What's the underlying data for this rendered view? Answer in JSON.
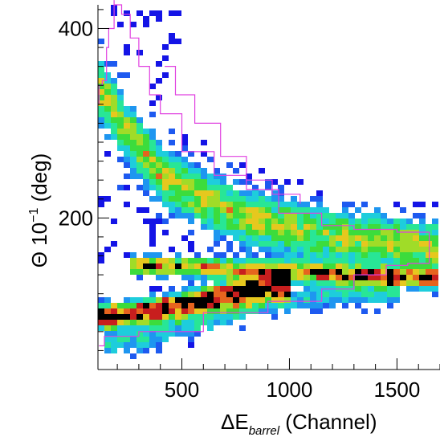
{
  "chart_data": {
    "type": "heatmap",
    "title": "",
    "xlabel": {
      "main": "ΔE",
      "sub": "barrel",
      "unit": " (Channel)"
    },
    "ylabel": {
      "main": "Θ 10",
      "sup": "−1",
      "unit": " (deg)"
    },
    "xlim": [
      110,
      1700
    ],
    "ylim": [
      40,
      425
    ],
    "x_ticks": [
      500,
      1000,
      1500
    ],
    "x_tick_labels": [
      "500",
      "1000",
      "1500"
    ],
    "y_ticks": [
      200,
      400
    ],
    "y_tick_labels": [
      "200",
      "400"
    ],
    "x_minor_step": 100,
    "y_minor_step": 20,
    "grid": false,
    "colormap": [
      "#1414e6",
      "#1e5af0",
      "#1e96f0",
      "#1ecddc",
      "#28e696",
      "#3cdc3c",
      "#a0dc28",
      "#e6c81e",
      "#e6641e",
      "#c81e1e",
      "#000000"
    ],
    "bands": [
      {
        "name": "upper band",
        "points": [
          [
            120,
            335
          ],
          [
            250,
            290
          ],
          [
            400,
            245
          ],
          [
            600,
            220
          ],
          [
            800,
            200
          ],
          [
            1000,
            190
          ],
          [
            1200,
            180
          ],
          [
            1400,
            175
          ],
          [
            1700,
            168
          ]
        ],
        "width": 20,
        "peak": 0.55
      },
      {
        "name": "middle band",
        "points": [
          [
            250,
            150
          ],
          [
            500,
            148
          ],
          [
            800,
            145
          ],
          [
            1100,
            142
          ],
          [
            1400,
            138
          ],
          [
            1700,
            135
          ]
        ],
        "width": 7,
        "peak": 0.75
      },
      {
        "name": "lower band",
        "points": [
          [
            120,
            95
          ],
          [
            300,
            100
          ],
          [
            500,
            108
          ],
          [
            700,
            118
          ],
          [
            900,
            127
          ],
          [
            1000,
            130
          ]
        ],
        "width": 9,
        "peak": 1.0
      },
      {
        "name": "low tail",
        "points": [
          [
            150,
            65
          ],
          [
            300,
            70
          ],
          [
            600,
            90
          ],
          [
            900,
            110
          ],
          [
            1200,
            118
          ],
          [
            1500,
            120
          ]
        ],
        "width": 10,
        "peak": 0.3
      }
    ],
    "cut_contours": [
      {
        "name": "upper contour",
        "points": [
          [
            115,
            65
          ],
          [
            140,
            65
          ],
          [
            140,
            75
          ],
          [
            300,
            80
          ],
          [
            600,
            100
          ],
          [
            900,
            112
          ],
          [
            1150,
            125
          ],
          [
            1300,
            140
          ],
          [
            1450,
            150
          ],
          [
            1550,
            152
          ],
          [
            1650,
            160
          ],
          [
            1650,
            185
          ],
          [
            1500,
            188
          ],
          [
            1300,
            192
          ],
          [
            1150,
            205
          ],
          [
            950,
            230
          ],
          [
            800,
            245
          ],
          [
            650,
            270
          ],
          [
            500,
            310
          ],
          [
            400,
            330
          ],
          [
            350,
            360
          ],
          [
            300,
            390
          ],
          [
            260,
            415
          ],
          [
            220,
            425
          ],
          [
            185,
            430
          ],
          [
            185,
            400
          ],
          [
            160,
            380
          ],
          [
            150,
            345
          ],
          [
            130,
            340
          ],
          [
            115,
            320
          ]
        ],
        "color": "#e040e0"
      },
      {
        "name": "lower contour",
        "points": [
          [
            420,
            360
          ],
          [
            470,
            330
          ],
          [
            560,
            300
          ],
          [
            680,
            265
          ],
          [
            800,
            240
          ],
          [
            920,
            225
          ],
          [
            1050,
            215
          ]
        ],
        "color": "#e040e0"
      }
    ]
  }
}
